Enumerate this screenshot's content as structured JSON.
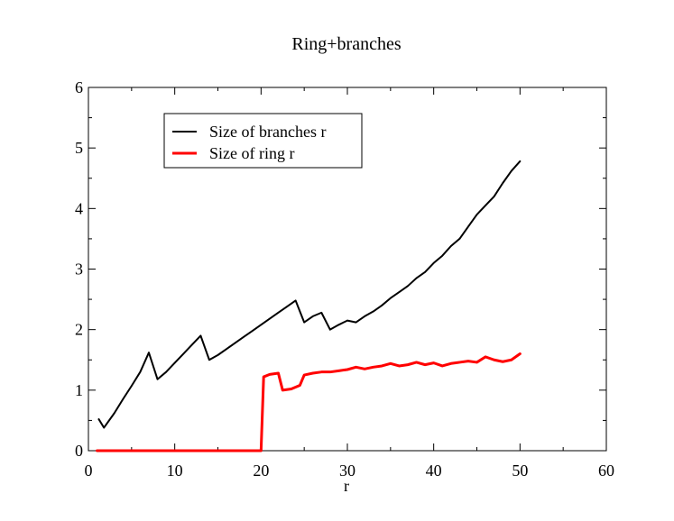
{
  "chart_data": {
    "type": "line",
    "title": "Ring+branches",
    "subtitle": "",
    "xlabel": "r",
    "ylabel": "",
    "xlim": [
      0,
      60
    ],
    "ylim": [
      0,
      6
    ],
    "x_ticks": [
      "0",
      "10",
      "20",
      "30",
      "40",
      "50",
      "60"
    ],
    "y_ticks": [
      "0",
      "1",
      "2",
      "3",
      "4",
      "5",
      "6"
    ],
    "grid": false,
    "legend_position": "top-left",
    "series": [
      {
        "name": "Size of branches r",
        "color": "#000000",
        "x": [
          1.2,
          1.8,
          3,
          4,
          5,
          6,
          7,
          8,
          9,
          10,
          11,
          12,
          13,
          14,
          15,
          16,
          17,
          18,
          19,
          20,
          21,
          22,
          23,
          24,
          25,
          26,
          27,
          28,
          29,
          30,
          31,
          32,
          33,
          34,
          35,
          36,
          37,
          38,
          39,
          40,
          41,
          42,
          43,
          44,
          45,
          46,
          47,
          48,
          49,
          50
        ],
        "values": [
          0.52,
          0.38,
          0.62,
          0.85,
          1.07,
          1.3,
          1.62,
          1.18,
          1.3,
          1.45,
          1.6,
          1.75,
          1.9,
          1.5,
          1.58,
          1.68,
          1.78,
          1.88,
          1.98,
          2.08,
          2.18,
          2.28,
          2.38,
          2.48,
          2.12,
          2.22,
          2.28,
          2.0,
          2.08,
          2.15,
          2.12,
          2.22,
          2.3,
          2.4,
          2.52,
          2.62,
          2.72,
          2.85,
          2.95,
          3.1,
          3.22,
          3.38,
          3.5,
          3.7,
          3.9,
          4.05,
          4.2,
          4.42,
          4.62,
          4.78
        ]
      },
      {
        "name": "Size of ring r",
        "color": "#ff0000",
        "x": [
          1,
          20,
          20.3,
          21,
          22,
          22.5,
          23.5,
          24.5,
          25,
          26,
          27,
          28,
          29,
          30,
          31,
          32,
          33,
          34,
          35,
          36,
          37,
          38,
          39,
          40,
          41,
          42,
          43,
          44,
          45,
          46,
          47,
          48,
          49,
          50
        ],
        "values": [
          0,
          0,
          1.22,
          1.26,
          1.28,
          1.0,
          1.02,
          1.08,
          1.25,
          1.28,
          1.3,
          1.3,
          1.32,
          1.34,
          1.38,
          1.35,
          1.38,
          1.4,
          1.44,
          1.4,
          1.42,
          1.46,
          1.42,
          1.45,
          1.4,
          1.44,
          1.46,
          1.48,
          1.46,
          1.55,
          1.5,
          1.47,
          1.5,
          1.6
        ]
      }
    ]
  }
}
